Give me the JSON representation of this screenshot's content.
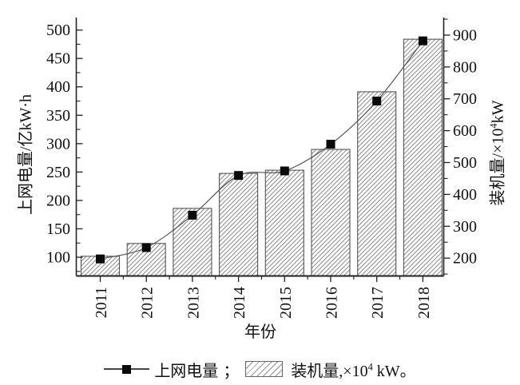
{
  "chart_data": {
    "type": "combo-bar-line",
    "categories": [
      "2011",
      "2012",
      "2013",
      "2014",
      "2015",
      "2016",
      "2017",
      "2018"
    ],
    "series": [
      {
        "name": "上网电量",
        "type": "line",
        "axis": "left",
        "values": [
          97,
          117,
          174,
          244,
          252,
          299,
          375,
          481
        ]
      },
      {
        "name": "装机量",
        "type": "bar",
        "axis": "right",
        "values": [
          206,
          246,
          356,
          466,
          476,
          541,
          722,
          887
        ]
      }
    ],
    "x_axis": {
      "label": "年份"
    },
    "left_axis": {
      "label": "上网电量/亿kW·h",
      "ticks": [
        100,
        150,
        200,
        250,
        300,
        350,
        400,
        450,
        500
      ],
      "minor_ticks": [
        75,
        125,
        175,
        225,
        275,
        325,
        375,
        425,
        475
      ],
      "range": [
        67,
        522
      ]
    },
    "right_axis": {
      "label_prefix": "装机量/×10",
      "label_sup": "4",
      "label_suffix": "kW",
      "ticks": [
        200,
        300,
        400,
        500,
        600,
        700,
        800,
        900
      ],
      "minor_ticks": [
        150,
        250,
        350,
        450,
        550,
        650,
        750,
        850,
        950
      ],
      "range": [
        144,
        955
      ]
    },
    "legend": {
      "series1_label": "上网电量",
      "separator": "；",
      "series2_prefix": "装机量,×10",
      "series2_sup": "4",
      "series2_suffix": " kW。"
    },
    "legend_position": "bottom",
    "grid": false,
    "colors": {
      "background": "#ffffff",
      "text": "#111111",
      "axis": "#222222",
      "line": "#555555",
      "marker": "#0a0a0a",
      "bar_border": "#555555",
      "bar_hatch": "#8c8c8c"
    }
  }
}
